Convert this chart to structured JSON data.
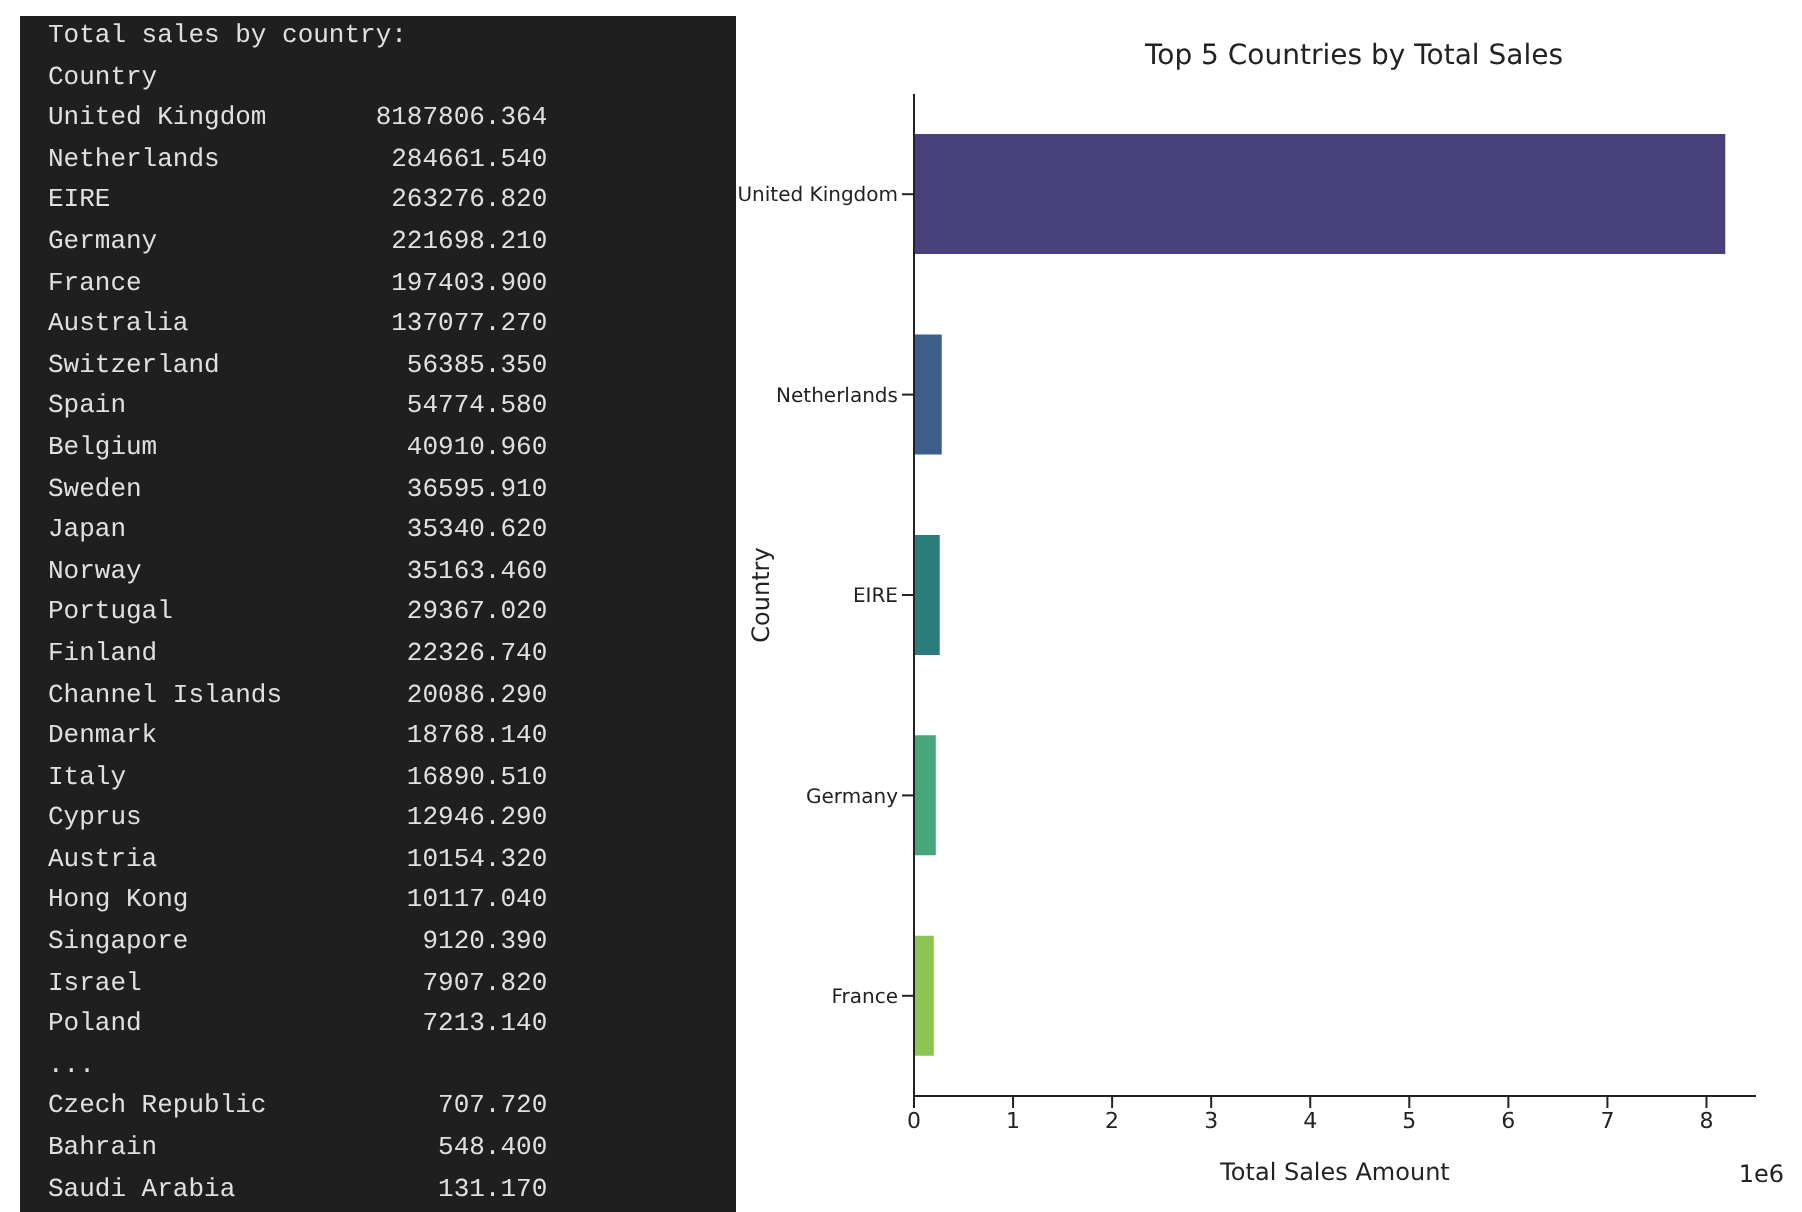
{
  "chart_data": [
    {
      "type": "other",
      "title": "Total sales by country:",
      "annotations": [
        "Country",
        "United Kingdom       8187806.364",
        "Netherlands           284661.540",
        "EIRE                  263276.820",
        "Germany               221698.210",
        "France                197403.900",
        "Australia             137077.270",
        "Switzerland            56385.350",
        "Spain                  54774.580",
        "Belgium                40910.960",
        "Sweden                 36595.910",
        "Japan                  35340.620",
        "Norway                 35163.460",
        "Portugal               29367.020",
        "Finland                22326.740",
        "Channel Islands        20086.290",
        "Denmark                18768.140",
        "Italy                  16890.510",
        "Cyprus                 12946.290",
        "Austria                10154.320",
        "Hong Kong              10117.040",
        "Singapore               9120.390",
        "Israel                  7907.820",
        "Poland                  7213.140",
        "...",
        "Czech Republic           707.720",
        "Bahrain                  548.400",
        "Saudi Arabia             131.170"
      ]
    },
    {
      "type": "bar",
      "orientation": "horizontal",
      "title": "Top 5 Countries by Total Sales",
      "xlabel": "Total Sales Amount",
      "ylabel": "Country",
      "categories": [
        "United Kingdom",
        "Netherlands",
        "EIRE",
        "Germany",
        "France"
      ],
      "values": [
        8.19,
        0.28,
        0.26,
        0.22,
        0.2
      ],
      "colors": [
        "#48407a",
        "#3b5f8a",
        "#2b7d7c",
        "#45a77a",
        "#8bc653"
      ],
      "xlim": [
        0,
        8.5
      ],
      "xticks": [
        0,
        1,
        2,
        3,
        4,
        5,
        6,
        7,
        8
      ],
      "annotations": [
        "1e6"
      ]
    }
  ]
}
